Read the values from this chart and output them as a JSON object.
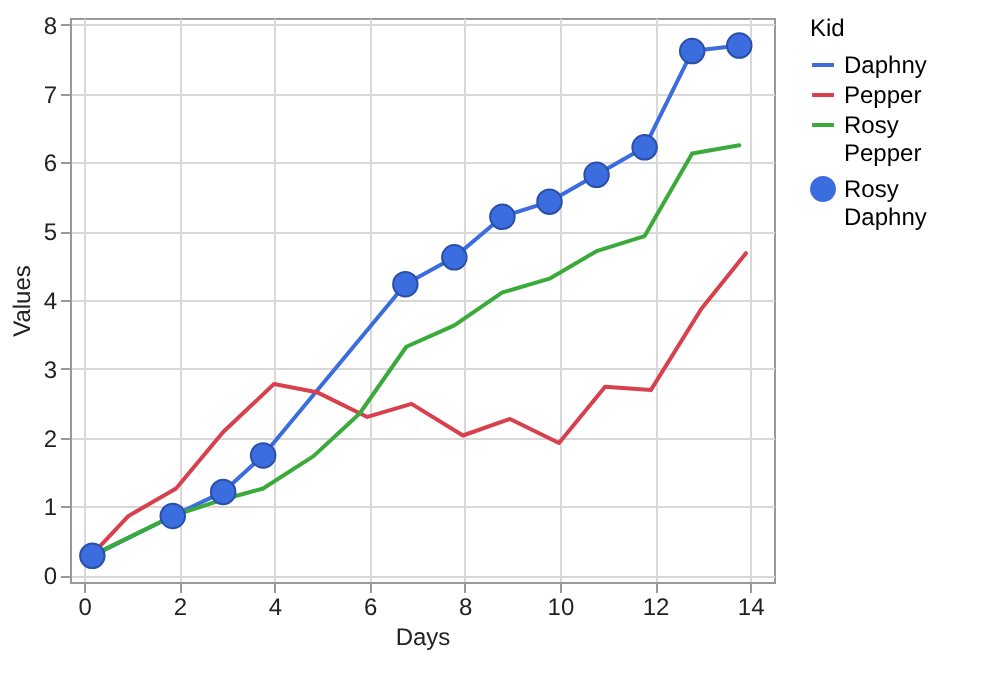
{
  "chart_data": {
    "type": "line",
    "xlabel": "Days",
    "ylabel": "Values",
    "legend_title": "Kid",
    "xlim": [
      -0.3,
      14.5
    ],
    "xticks": [
      0,
      2,
      4,
      6,
      8,
      10,
      12,
      14
    ],
    "ylim": [
      -0.1,
      8.1
    ],
    "yticks": [
      0,
      1,
      2,
      3,
      4,
      5,
      6,
      7,
      8
    ],
    "grid": true,
    "legend": "right",
    "marker": "none",
    "line_style": "solid",
    "series": [
      {
        "name": "Daphny",
        "color": "#3b6ddf",
        "x": [
          0.17,
          1.86,
          2.92,
          3.76,
          6.75,
          7.78,
          8.79,
          9.78,
          10.77,
          11.78,
          12.78,
          13.77
        ],
        "values": [
          0.28,
          0.86,
          1.21,
          1.74,
          4.23,
          4.62,
          5.21,
          5.43,
          5.82,
          6.22,
          7.62,
          7.7
        ]
      },
      {
        "name": "Pepper",
        "color": "#d8404e",
        "x": [
          0.14,
          0.93,
          1.93,
          2.92,
          3.99,
          4.89,
          5.95,
          6.88,
          7.96,
          8.95,
          9.98,
          10.95,
          11.91,
          12.97,
          13.91
        ],
        "values": [
          0.28,
          0.86,
          1.26,
          2.08,
          2.78,
          2.66,
          2.3,
          2.49,
          2.03,
          2.27,
          1.92,
          2.74,
          2.69,
          3.87,
          4.68
        ]
      },
      {
        "name": "Rosy Pepper",
        "color": "#3aaa3a",
        "x": [
          0.14,
          1.86,
          2.92,
          3.76,
          4.82,
          5.79,
          6.77,
          7.78,
          8.79,
          9.78,
          10.77,
          11.78,
          12.78,
          13.77
        ],
        "values": [
          0.28,
          0.86,
          1.1,
          1.26,
          1.73,
          2.35,
          3.32,
          3.63,
          4.11,
          4.31,
          4.71,
          4.93,
          6.13,
          6.25
        ]
      },
      {
        "name": "Rosy Daphny",
        "type": "scatter",
        "marker": "circle",
        "color": "#3b6ddf",
        "x": [
          0.17,
          1.86,
          2.92,
          3.76,
          6.75,
          7.78,
          8.79,
          9.78,
          10.77,
          11.78,
          12.78,
          13.77
        ],
        "values": [
          0.28,
          0.86,
          1.21,
          1.74,
          4.23,
          4.62,
          5.21,
          5.43,
          5.82,
          6.22,
          7.62,
          7.7
        ]
      }
    ]
  }
}
